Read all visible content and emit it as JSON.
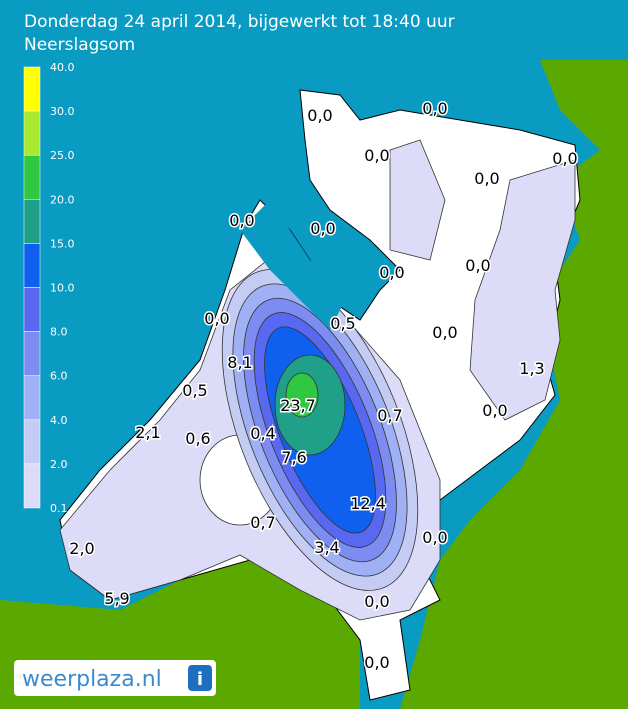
{
  "header": {
    "title": "Donderdag 24 april 2014, bijgewerkt tot 18:40 uur",
    "subtitle": "Neerslagsom"
  },
  "legend": {
    "steps": [
      {
        "label": "40.0",
        "color": "#ffff00"
      },
      {
        "label": "30.0",
        "color": "#a8e830"
      },
      {
        "label": "25.0",
        "color": "#30c840"
      },
      {
        "label": "20.0",
        "color": "#20a088"
      },
      {
        "label": "15.0",
        "color": "#1060f0"
      },
      {
        "label": "10.0",
        "color": "#5868f0"
      },
      {
        "label": "8.0",
        "color": "#7c8cf0"
      },
      {
        "label": "6.0",
        "color": "#a0b0f4"
      },
      {
        "label": "4.0",
        "color": "#c4ccf4"
      },
      {
        "label": "2.0",
        "color": "#dcdcf8"
      },
      {
        "label": "0.1"
      }
    ]
  },
  "map": {
    "labels": [
      "0,0",
      "0,0",
      "0,0",
      "0,0",
      "0,0",
      "0,0",
      "0,0",
      "0,0",
      "0,0",
      "0,0",
      "0,5",
      "0,0",
      "8,1",
      "1,3",
      "0,5",
      "23,7",
      "0,7",
      "0,0",
      "2,1",
      "0,6",
      "0,4",
      "7,6",
      "12,4",
      "0,7",
      "0,0",
      "2,0",
      "3,4",
      "5,9",
      "0,0",
      "0,0"
    ]
  },
  "logo": {
    "text": "weerplaza.nl",
    "icon": "i"
  }
}
